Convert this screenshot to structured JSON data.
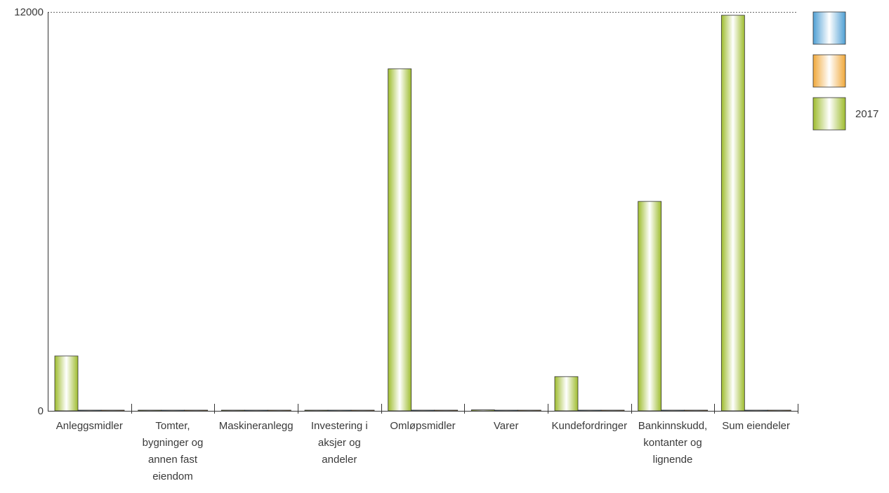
{
  "chart_data": {
    "type": "bar",
    "categories": [
      [
        "Anleggsmidler"
      ],
      [
        "Tomter,",
        "bygninger og",
        "annen fast",
        "eiendom"
      ],
      [
        "Maskineranlegg"
      ],
      [
        "Investering i",
        "aksjer og",
        "andeler"
      ],
      [
        "Omløpsmidler"
      ],
      [
        "Varer"
      ],
      [
        "Kundefordringer"
      ],
      [
        "Bankinnskudd,",
        "kontanter og",
        "lignende"
      ],
      [
        "Sum eiendeler"
      ]
    ],
    "series": [
      {
        "name": "",
        "color": "#5aaee0",
        "values": [
          0,
          0,
          0,
          0,
          0,
          0,
          0,
          0,
          0
        ]
      },
      {
        "name": "",
        "color": "#f2b24a",
        "values": [
          0,
          0,
          0,
          0,
          0,
          0,
          0,
          0,
          0
        ]
      },
      {
        "name": "2017",
        "color": "#a8c43c",
        "values": [
          1650,
          0,
          0,
          10,
          10290,
          30,
          1030,
          6300,
          11900
        ]
      }
    ],
    "ylim": [
      0,
      12000
    ],
    "yticks": [
      "0",
      "12000"
    ],
    "grid": "dotted line at top",
    "legend": "top-right"
  }
}
